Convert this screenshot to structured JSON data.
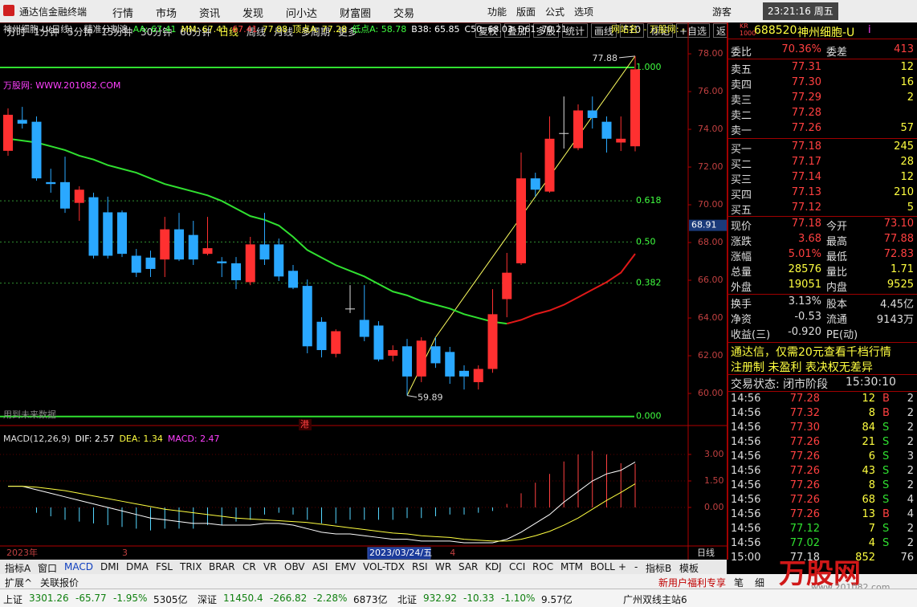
{
  "menu": {
    "app": "通达信金融终端",
    "items": [
      "行情",
      "市场",
      "资讯",
      "发现",
      "问小达",
      "财富圈",
      "交易"
    ],
    "right": [
      "功能",
      "版面",
      "公式",
      "选项"
    ],
    "user": "游客",
    "clock": "23:21:16 周五"
  },
  "toolbar": {
    "periods": [
      "分时",
      "1分钟",
      "5分钟",
      "15分钟",
      "30分钟",
      "60分钟",
      "日线",
      "周线",
      "月线",
      "多周期",
      "更多"
    ],
    "buttons": [
      "复权",
      "叠加",
      "多股",
      "统计",
      "画线",
      "F10",
      "标记",
      "+自选",
      "返回"
    ]
  },
  "chart_data": [
    {
      "type": "candlestick",
      "title": "神州细胞-U(日线)",
      "indicator": "精准分割浪",
      "header": [
        {
          "text": "AA: 67.41",
          "color": "#40ff40"
        },
        {
          "text": "MM: 67.41",
          "color": "#ffff40"
        },
        {
          "text": "67.41",
          "color": "#ff4040"
        },
        {
          "text": "77.88",
          "color": "#ffff40"
        },
        {
          "text": "顶点A: 77.28",
          "color": "#ffff40"
        },
        {
          "text": "低点A: 58.78",
          "color": "#40ff40"
        },
        {
          "text": "B38: 65.85",
          "color": "#ffffff"
        },
        {
          "text": "C50: 68.03",
          "color": "#ffffff"
        },
        {
          "text": "D61: 70.21",
          "color": "#ffffff"
        }
      ],
      "website": "网站名: - 万股网: -",
      "watermark": "万股网: WWW.201082.COM",
      "categories": [
        "2023年",
        null,
        null,
        null,
        null,
        null,
        null,
        null,
        "3",
        null,
        null,
        null,
        null,
        null,
        null,
        null,
        null,
        null,
        null,
        null,
        null,
        null,
        null,
        null,
        null,
        null,
        null,
        null,
        null,
        null,
        null,
        "4",
        null,
        null,
        null,
        null,
        null,
        null,
        null,
        null,
        null,
        null,
        null,
        null,
        null
      ],
      "cursor_label": "2023/03/24/五",
      "period_label": "日线",
      "open": [
        72.86,
        74.5,
        74.4,
        71.2,
        71.2,
        70.1,
        70.4,
        69.6,
        69.6,
        67.3,
        67.2,
        67.1,
        68.7,
        68.4,
        67.4,
        67.0,
        66.9,
        65.9,
        67.9,
        67.9,
        66.5,
        65.7,
        63.8,
        62.1,
        64.5,
        63.9,
        63.6,
        62.0,
        62.5,
        60.9,
        62.5,
        62.2,
        61.2,
        60.6,
        61.3,
        65.0,
        66.9,
        71.4,
        70.7,
        73.8,
        73.0,
        75.0,
        74.4,
        73.3,
        73.1
      ],
      "close": [
        74.77,
        74.3,
        71.4,
        71.1,
        69.8,
        70.8,
        67.3,
        67.3,
        67.4,
        66.4,
        66.6,
        68.7,
        67.1,
        67.1,
        67.7,
        66.9,
        66.0,
        67.9,
        67.1,
        66.2,
        65.6,
        62.5,
        62.3,
        63.3,
        64.5,
        63.0,
        61.8,
        62.3,
        60.9,
        62.8,
        61.6,
        60.9,
        60.9,
        61.3,
        64.2,
        66.4,
        71.4,
        70.8,
        73.5,
        73.8,
        75.0,
        74.6,
        73.5,
        73.5,
        77.18
      ],
      "high": [
        75.11,
        75.19,
        74.68,
        71.91,
        72.55,
        70.98,
        70.64,
        70.43,
        69.7,
        67.66,
        67.57,
        69.36,
        69.57,
        69.15,
        69.36,
        67.23,
        67.23,
        68.3,
        69.57,
        68.21,
        66.81,
        66.04,
        64.04,
        63.4,
        65.74,
        65.74,
        63.83,
        62.55,
        62.89,
        62.98,
        62.98,
        62.47,
        61.49,
        61.49,
        65.53,
        67.45,
        72.77,
        71.7,
        74.68,
        75.74,
        75.32,
        75.74,
        74.68,
        74.68,
        77.88
      ],
      "low": [
        72.6,
        74.04,
        71.28,
        70.64,
        69.57,
        69.15,
        67.15,
        67.15,
        67.23,
        66.17,
        66.17,
        66.17,
        67.02,
        66.81,
        67.32,
        66.17,
        65.53,
        65.74,
        66.81,
        65.96,
        65.53,
        62.13,
        61.91,
        61.91,
        64.26,
        62.77,
        61.7,
        61.7,
        59.89,
        60.6,
        61.36,
        60.51,
        60.21,
        60.21,
        61.1,
        64.04,
        66.81,
        70.43,
        70.64,
        72.98,
        72.89,
        74.04,
        72.77,
        72.85,
        72.83
      ],
      "up_color": "#ff3030",
      "down_color": "#2aa8ff",
      "ma": [
        {
          "color": "#30e030",
          "values": [
            73.5,
            73.4,
            73.3,
            73.1,
            72.9,
            72.6,
            72.4,
            72.1,
            71.9,
            71.7,
            71.4,
            71.1,
            70.9,
            70.7,
            70.5,
            70.2,
            69.8,
            69.4,
            69.2,
            68.9,
            68.3,
            67.6,
            67.2,
            66.8,
            66.5,
            66.2,
            65.8,
            65.4,
            65.2,
            64.9,
            64.7,
            64.5,
            64.2,
            64.0,
            63.8,
            63.7,
            null,
            null,
            null,
            null,
            null,
            null,
            null,
            null,
            null
          ]
        },
        {
          "color": "#e01818",
          "values": [
            null,
            null,
            null,
            null,
            null,
            null,
            null,
            null,
            null,
            null,
            null,
            null,
            null,
            null,
            null,
            null,
            null,
            null,
            null,
            null,
            null,
            null,
            null,
            null,
            null,
            null,
            null,
            null,
            null,
            null,
            null,
            null,
            null,
            null,
            null,
            63.7,
            63.9,
            64.2,
            64.4,
            64.7,
            65.1,
            65.5,
            65.9,
            66.4,
            67.4
          ]
        }
      ],
      "ylim": [
        58.3,
        78.64
      ],
      "yticks": [
        {
          "value": 60,
          "label": "60.00"
        },
        {
          "value": 62,
          "label": "62.00"
        },
        {
          "value": 64,
          "label": "64.00"
        },
        {
          "value": 66,
          "label": "66.00"
        },
        {
          "value": 68,
          "label": "68.00"
        },
        {
          "value": 70,
          "label": "70.00"
        },
        {
          "value": 72,
          "label": "72.00"
        },
        {
          "value": 74,
          "label": "74.00"
        },
        {
          "value": 76,
          "label": "76.00"
        },
        {
          "value": 78,
          "label": "78.00"
        }
      ],
      "cursor_price": 68.91,
      "levels": [
        {
          "value": 77.28,
          "label": "1.000"
        },
        {
          "value": 70.21,
          "label": "0.618"
        },
        {
          "value": 68.03,
          "label": "0.50"
        },
        {
          "value": 65.85,
          "label": "0.382"
        },
        {
          "value": 58.78,
          "label": "0.000"
        }
      ],
      "high_label": 77.88,
      "low_label": 59.89,
      "future_note": "用到未来数据",
      "hk_badge": "港"
    },
    {
      "type": "macd",
      "title": "MACD(12,26,9)",
      "legend": [
        {
          "text": "DIF: 2.57",
          "color": "#ffffff"
        },
        {
          "text": "DEA: 1.34",
          "color": "#ffff40"
        },
        {
          "text": "MACD: 2.47",
          "color": "#ff40ff"
        }
      ],
      "values": [
        0,
        0,
        -0.3,
        -0.5,
        -0.7,
        -0.8,
        -0.9,
        -1.0,
        -1.1,
        -1.2,
        -1.3,
        -1.2,
        -1.2,
        -1.2,
        -1.0,
        -1.0,
        -0.8,
        -0.7,
        -0.4,
        -0.3,
        -0.4,
        -0.7,
        -0.9,
        -0.9,
        -0.7,
        -0.7,
        -0.7,
        -0.7,
        -0.6,
        -0.6,
        -0.5,
        -0.4,
        -0.4,
        -0.3,
        -0.2,
        0.2,
        0.8,
        1.4,
        1.9,
        2.6,
        3.0,
        3.2,
        3.0,
        2.5,
        2.47
      ],
      "series": [
        {
          "color": "#ffffff",
          "values": [
            1.2,
            1.2,
            1.0,
            0.8,
            0.6,
            0.4,
            0.2,
            0.0,
            -0.2,
            -0.4,
            -0.6,
            -0.7,
            -0.8,
            -0.9,
            -0.9,
            -1.0,
            -1.0,
            -1.0,
            -0.9,
            -0.9,
            -1.0,
            -1.2,
            -1.4,
            -1.5,
            -1.5,
            -1.6,
            -1.7,
            -1.8,
            -1.8,
            -1.9,
            -1.9,
            -1.9,
            -2.0,
            -2.0,
            -2.0,
            -1.8,
            -1.4,
            -0.9,
            -0.4,
            0.3,
            0.9,
            1.5,
            1.9,
            2.1,
            2.57
          ]
        },
        {
          "color": "#ffff40",
          "values": [
            1.2,
            1.2,
            1.15,
            1.05,
            0.95,
            0.8,
            0.65,
            0.5,
            0.35,
            0.2,
            0.05,
            -0.1,
            -0.2,
            -0.3,
            -0.4,
            -0.5,
            -0.6,
            -0.65,
            -0.7,
            -0.75,
            -0.8,
            -0.85,
            -0.95,
            -1.05,
            -1.15,
            -1.25,
            -1.35,
            -1.45,
            -1.5,
            -1.6,
            -1.65,
            -1.7,
            -1.8,
            -1.85,
            -1.9,
            -1.9,
            -1.8,
            -1.6,
            -1.35,
            -1.0,
            -0.6,
            -0.1,
            0.4,
            0.85,
            1.34
          ]
        }
      ],
      "up_color": "#ff4040",
      "down_color": "#54d6ff",
      "ylim": [
        -2.18,
        4.18
      ],
      "yticks": [
        {
          "value": 3,
          "label": "3.00"
        },
        {
          "value": 1.5,
          "label": "1.50"
        },
        {
          "value": 0,
          "label": "0.00"
        }
      ]
    }
  ],
  "quote": {
    "badge": [
      "KR",
      "1000"
    ],
    "code": "688520",
    "name": "神州细胞-U",
    "flag": "i",
    "ratio": [
      "委比",
      "70.36%",
      "委差",
      "413"
    ],
    "asks": [
      [
        "卖五",
        "77.31",
        "12"
      ],
      [
        "卖四",
        "77.30",
        "16"
      ],
      [
        "卖三",
        "77.29",
        "2"
      ],
      [
        "卖二",
        "77.28"
      ],
      [
        "卖一",
        "77.26",
        "57"
      ]
    ],
    "bids": [
      [
        "买一",
        "77.18",
        "245"
      ],
      [
        "买二",
        "77.17",
        "28"
      ],
      [
        "买三",
        "77.14",
        "12"
      ],
      [
        "买四",
        "77.13",
        "210"
      ],
      [
        "买五",
        "77.12",
        "5"
      ]
    ],
    "stats": [
      [
        "现价",
        "77.18",
        "今开",
        "73.10"
      ],
      [
        "涨跌",
        "3.68",
        "最高",
        "77.88"
      ],
      [
        "涨幅",
        "5.01%",
        "最低",
        "72.83"
      ],
      [
        "总量",
        "28576",
        "量比",
        "1.71"
      ],
      [
        "外盘",
        "19051",
        "内盘",
        "9525"
      ]
    ],
    "stats2": [
      [
        "换手",
        "3.13%",
        "股本",
        "4.45亿"
      ],
      [
        "净资",
        "-0.53",
        "流通",
        "9143万"
      ],
      [
        "收益(三)",
        "-0.920",
        "PE(动)"
      ]
    ],
    "notices": [
      "通达信，仅需20元查看千档行情",
      "注册制 未盈利 表决权无差异"
    ],
    "status": "交易状态: 闭市阶段",
    "status_time": "15:30:10",
    "ticks": [
      {
        "time": "14:56",
        "price": "77.28",
        "vol": "12",
        "bs": "B",
        "n": "2"
      },
      {
        "time": "14:56",
        "price": "77.32",
        "vol": "8",
        "bs": "B",
        "n": "2"
      },
      {
        "time": "14:56",
        "price": "77.30",
        "vol": "84",
        "bs": "S",
        "n": "2"
      },
      {
        "time": "14:56",
        "price": "77.26",
        "vol": "21",
        "bs": "S",
        "n": "2"
      },
      {
        "time": "14:56",
        "price": "77.26",
        "vol": "6",
        "bs": "S",
        "n": "3"
      },
      {
        "time": "14:56",
        "price": "77.26",
        "vol": "43",
        "bs": "S",
        "n": "2"
      },
      {
        "time": "14:56",
        "price": "77.26",
        "vol": "8",
        "bs": "S",
        "n": "2"
      },
      {
        "time": "14:56",
        "price": "77.26",
        "vol": "68",
        "bs": "S",
        "n": "4"
      },
      {
        "time": "14:56",
        "price": "77.26",
        "vol": "13",
        "bs": "B",
        "n": "4"
      },
      {
        "time": "14:56",
        "price": "77.12",
        "vol": "7",
        "bs": "S",
        "n": "2"
      },
      {
        "time": "14:56",
        "price": "77.02",
        "vol": "4",
        "bs": "S",
        "n": "2"
      },
      {
        "time": "15:00",
        "price": "77.18",
        "vol": "852",
        "n": "76"
      }
    ]
  },
  "tabs": {
    "items": [
      "指标A",
      "窗口",
      "MACD",
      "DMI",
      "DMA",
      "FSL",
      "TRIX",
      "BRAR",
      "CR",
      "VR",
      "OBV",
      "ASI",
      "EMV",
      "VOL-TDX",
      "RSI",
      "WR",
      "SAR",
      "KDJ",
      "CCI",
      "ROC",
      "MTM",
      "BOLL"
    ],
    "right": [
      "+",
      "-",
      "指标B",
      "模板"
    ],
    "row2": [
      "扩展^",
      "关联报价"
    ],
    "promo": "新用户福利专享",
    "side": [
      "笔",
      "细"
    ]
  },
  "logo": {
    "name": "万股网",
    "url": "www.201082.com"
  },
  "status_bar": {
    "indices": [
      {
        "name": "上证",
        "value": "3301.26",
        "change": "-65.77",
        "pct": "-1.95%",
        "amount": "5305亿"
      },
      {
        "name": "深证",
        "value": "11450.4",
        "change": "-266.82",
        "pct": "-2.28%",
        "amount": "6873亿"
      },
      {
        "name": "北证",
        "value": "932.92",
        "change": "-10.33",
        "pct": "-1.10%",
        "amount": "9.57亿"
      }
    ],
    "server": "广州双线主站6"
  }
}
